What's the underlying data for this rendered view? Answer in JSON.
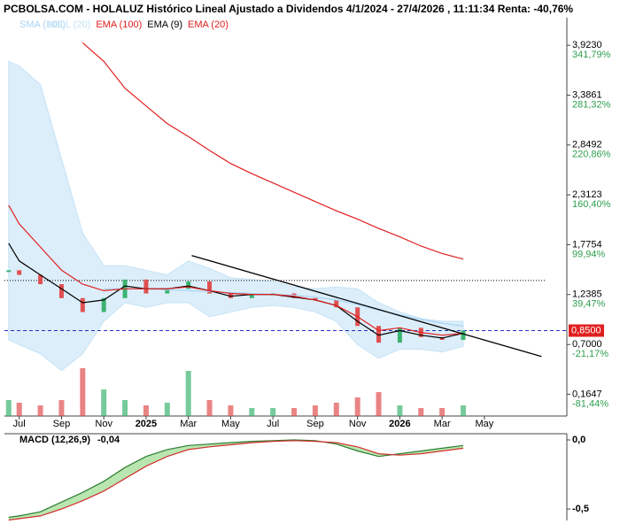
{
  "chart_data": [
    {
      "type": "line",
      "title": "PCBOLSA.COM - HOLALUZ Histórico Lineal Ajustado a Dividendos 4/1/2024 - 27/4/2026 , 11:11:34 Renta: -40,76%",
      "x": [
        -0.5,
        0,
        1,
        2,
        3,
        4,
        5,
        6,
        7,
        8,
        9,
        10,
        11,
        12,
        13,
        14,
        15,
        16,
        17,
        18,
        19,
        20,
        21
      ],
      "xlim": [
        -0.7,
        25.9
      ],
      "xticks": [
        {
          "value": 0,
          "label": "Jul"
        },
        {
          "value": 2,
          "label": "Sep"
        },
        {
          "value": 4,
          "label": "Nov"
        },
        {
          "value": 6,
          "label": "2025"
        },
        {
          "value": 8,
          "label": "Mar"
        },
        {
          "value": 10,
          "label": "May"
        },
        {
          "value": 12,
          "label": "Jul"
        },
        {
          "value": 14,
          "label": "Sep"
        },
        {
          "value": 16,
          "label": "Nov"
        },
        {
          "value": 18,
          "label": "2026"
        },
        {
          "value": 20,
          "label": "Mar"
        },
        {
          "value": 22,
          "label": "May"
        }
      ],
      "ylim": [
        -0.07,
        4.22
      ],
      "yticks": [
        {
          "value": 3.923,
          "label": "3,9230"
        },
        {
          "value": 3.3861,
          "label": "3,3861"
        },
        {
          "value": 2.8492,
          "label": "2,8492"
        },
        {
          "value": 2.3123,
          "label": "2,3123"
        },
        {
          "value": 1.7754,
          "label": "1,7754"
        },
        {
          "value": 1.2385,
          "label": "1,2385"
        },
        {
          "value": 0.7,
          "label": "0,7000"
        },
        {
          "value": 0.1647,
          "label": "0,1647"
        }
      ],
      "y2lim": [
        -107.88,
        375.12
      ],
      "y2ticks": [
        {
          "value": 341.79,
          "label": "341,79%"
        },
        {
          "value": 281.32,
          "label": "281,32%"
        },
        {
          "value": 220.86,
          "label": "220,86%"
        },
        {
          "value": 160.4,
          "label": "160,40%"
        },
        {
          "value": 99.94,
          "label": "99,94%"
        },
        {
          "value": 39.47,
          "label": "39,47%"
        },
        {
          "value": -21.17,
          "label": "-21,17%"
        },
        {
          "value": -81.44,
          "label": "-81,44%"
        }
      ],
      "price": {
        "up_color": "#3cb371",
        "down_color": "#e05050",
        "values": [
          1.5,
          1.45,
          1.35,
          1.2,
          1.05,
          1.2,
          1.4,
          1.25,
          1.3,
          1.38,
          1.25,
          1.2,
          1.25,
          1.25,
          1.2,
          1.18,
          1.1,
          0.9,
          0.72,
          0.88,
          0.78,
          0.75,
          0.85
        ]
      },
      "volume": {
        "y3lim": [
          0,
          1
        ],
        "values": [
          0.3,
          0.25,
          0.2,
          0.3,
          0.9,
          0.5,
          0.3,
          0.2,
          0.25,
          0.85,
          0.3,
          0.2,
          0.15,
          0.15,
          0.15,
          0.2,
          0.25,
          0.35,
          0.45,
          0.2,
          0.15,
          0.15,
          0.2
        ]
      },
      "series": [
        {
          "name": "SMA (100)",
          "color": "#a9d4f5",
          "values": [
            null,
            null,
            null,
            null,
            null,
            1.3,
            1.3,
            1.3,
            1.29,
            1.28,
            1.27,
            1.26,
            1.25,
            1.24,
            1.23,
            1.21,
            1.18,
            1.13,
            1.07,
            1.02,
            0.97,
            0.93,
            0.9
          ]
        },
        {
          "name": "BOLL (20)",
          "color": "#c5e3f7",
          "upper": [
            3.75,
            3.7,
            3.5,
            2.7,
            1.9,
            1.55,
            1.55,
            1.5,
            1.45,
            1.6,
            1.52,
            1.42,
            1.4,
            1.38,
            1.32,
            1.3,
            1.32,
            1.3,
            1.15,
            1.05,
            0.98,
            0.95,
            0.95
          ],
          "lower": [
            0.75,
            0.7,
            0.6,
            0.42,
            0.6,
            0.95,
            1.15,
            1.1,
            1.15,
            1.15,
            1.0,
            1.05,
            1.1,
            1.12,
            1.1,
            1.05,
            0.95,
            0.7,
            0.55,
            0.65,
            0.65,
            0.62,
            0.68
          ]
        },
        {
          "name": "EMA (100)",
          "color": "#e02020",
          "values": [
            null,
            null,
            null,
            null,
            3.95,
            3.75,
            3.46,
            3.27,
            3.08,
            2.94,
            2.79,
            2.65,
            2.54,
            2.44,
            2.34,
            2.24,
            2.14,
            2.05,
            1.95,
            1.86,
            1.76,
            1.68,
            1.62
          ]
        },
        {
          "name": "EMA (9)",
          "color": "#000000",
          "values": [
            1.79,
            1.6,
            1.45,
            1.3,
            1.15,
            1.18,
            1.33,
            1.3,
            1.3,
            1.33,
            1.28,
            1.22,
            1.24,
            1.24,
            1.21,
            1.18,
            1.12,
            0.95,
            0.8,
            0.85,
            0.8,
            0.77,
            0.82
          ]
        },
        {
          "name": "EMA (20)",
          "color": "#e02020",
          "values": [
            2.2,
            2.0,
            1.75,
            1.5,
            1.35,
            1.28,
            1.3,
            1.3,
            1.3,
            1.32,
            1.28,
            1.25,
            1.24,
            1.24,
            1.22,
            1.18,
            1.12,
            1.0,
            0.85,
            0.88,
            0.83,
            0.8,
            0.82
          ]
        }
      ],
      "hline": 1.39,
      "trendline": {
        "x": [
          8.16,
          24.7
        ],
        "values": [
          1.658,
          0.571
        ]
      },
      "last_price": {
        "value": 0.85,
        "label": "0,8500",
        "color": "#e02020"
      }
    },
    {
      "type": "macd",
      "title": "MACD (12,26,9)",
      "last_value": {
        "value": -0.04,
        "label": "-0,04"
      },
      "ylim": [
        -0.583,
        0.045
      ],
      "yticks": [
        {
          "value": 0,
          "label": "0,0"
        },
        {
          "value": -0.5,
          "label": "-0,5"
        }
      ],
      "series": [
        {
          "color": "#2e7d32",
          "values": [
            -0.56,
            -0.55,
            -0.52,
            -0.45,
            -0.38,
            -0.3,
            -0.2,
            -0.12,
            -0.07,
            -0.04,
            -0.03,
            -0.02,
            -0.01,
            -0.005,
            0,
            -0.005,
            -0.03,
            -0.08,
            -0.12,
            -0.1,
            -0.08,
            -0.06,
            -0.04
          ]
        },
        {
          "color": "#d32f2f",
          "values": [
            -0.58,
            -0.57,
            -0.55,
            -0.5,
            -0.44,
            -0.37,
            -0.28,
            -0.19,
            -0.12,
            -0.07,
            -0.05,
            -0.035,
            -0.02,
            -0.01,
            -0.005,
            -0.01,
            -0.02,
            -0.05,
            -0.1,
            -0.11,
            -0.1,
            -0.08,
            -0.06
          ]
        }
      ]
    }
  ]
}
